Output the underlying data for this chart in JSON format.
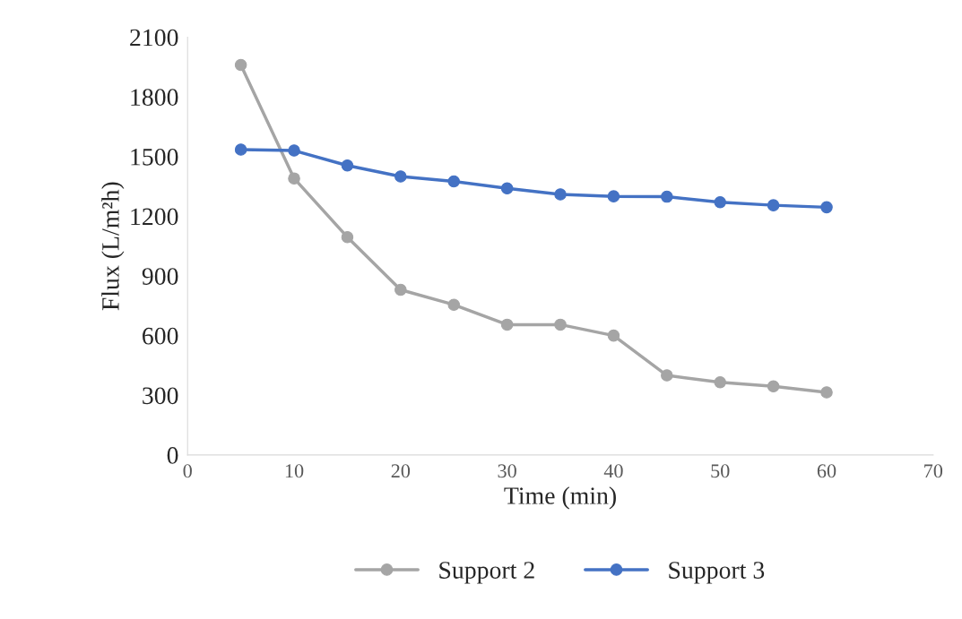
{
  "chart_data": {
    "type": "line",
    "xlabel": "Time (min)",
    "ylabel": "Flux (L/m²h)",
    "x": [
      5,
      10,
      15,
      20,
      25,
      30,
      35,
      40,
      45,
      50,
      55,
      60
    ],
    "series": [
      {
        "name": "Support 2",
        "color": "#a5a5a5",
        "values": [
          1960,
          1390,
          1095,
          830,
          755,
          655,
          655,
          600,
          400,
          365,
          345,
          315
        ]
      },
      {
        "name": "Support 3",
        "color": "#4472c4",
        "values": [
          1535,
          1530,
          1455,
          1400,
          1375,
          1340,
          1310,
          1300,
          1298,
          1270,
          1255,
          1245
        ]
      }
    ],
    "xlim": [
      0,
      70
    ],
    "xticks": [
      0,
      10,
      20,
      30,
      40,
      50,
      60,
      70
    ],
    "ylim": [
      0,
      2100
    ],
    "yticks": [
      0,
      300,
      600,
      900,
      1200,
      1500,
      1800,
      2100
    ],
    "grid": false,
    "legend": "bottom",
    "marker": "circle",
    "line_style": "solid"
  }
}
